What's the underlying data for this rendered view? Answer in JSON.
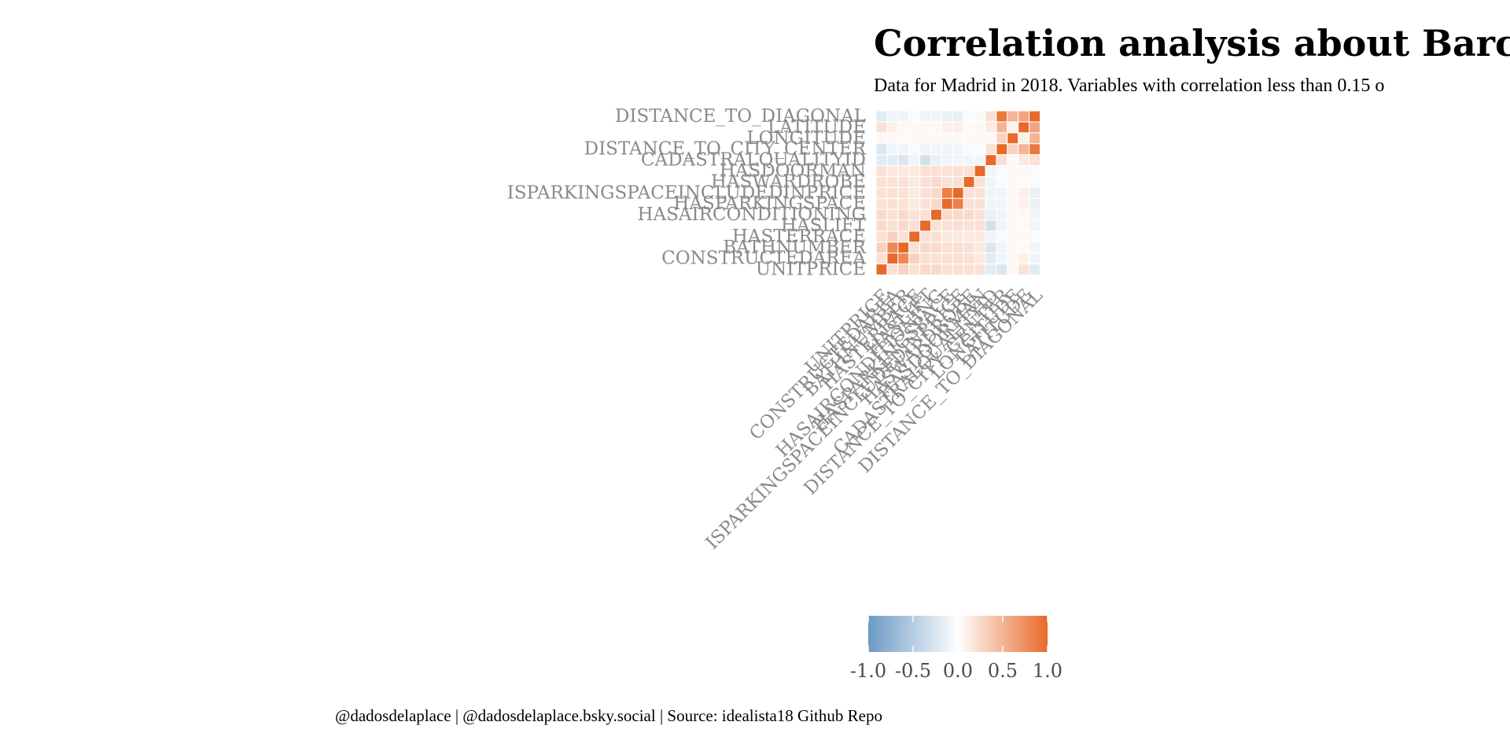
{
  "title": "Correlation analysis about Barce",
  "subtitle": "Data for Madrid in 2018. Variables with correlation less than 0.15 o",
  "caption": "@dadosdelaplace | @dadosdelaplace.bsky.social | Source: idealista18 Github Repo",
  "chart_data": {
    "type": "heatmap",
    "variables": [
      "UNITPRICE",
      "CONSTRUCTEDAREA",
      "BATHNUMBER",
      "HASTERRACE",
      "HASLIFT",
      "HASAIRCONDITIONING",
      "HASPARKINGSPACE",
      "ISPARKINGSPACEINCLUDEDINPRICE",
      "HASWARDROBE",
      "HASDOORMAN",
      "CADASTRALQUALITYID",
      "DISTANCE_TO_CITY_CENTER",
      "LONGITUDE",
      "LATITUDE",
      "DISTANCE_TO_DIAGONAL"
    ],
    "matrix": [
      [
        1.0,
        0.2,
        0.3,
        0.2,
        0.25,
        0.25,
        0.2,
        0.2,
        0.2,
        0.2,
        -0.2,
        -0.25,
        0.05,
        0.2,
        -0.2
      ],
      [
        0.2,
        1.0,
        0.8,
        0.3,
        0.2,
        0.2,
        0.2,
        0.2,
        0.2,
        0.15,
        -0.2,
        -0.1,
        0.05,
        0.1,
        -0.1
      ],
      [
        0.3,
        0.8,
        1.0,
        0.2,
        0.25,
        0.25,
        0.2,
        0.2,
        0.2,
        0.15,
        -0.25,
        -0.1,
        0.05,
        0.05,
        -0.1
      ],
      [
        0.2,
        0.3,
        0.2,
        1.0,
        0.2,
        0.2,
        0.15,
        0.15,
        0.15,
        0.15,
        -0.1,
        -0.05,
        0.05,
        0.05,
        -0.05
      ],
      [
        0.25,
        0.2,
        0.25,
        0.2,
        1.0,
        0.2,
        0.2,
        0.2,
        0.2,
        0.2,
        -0.3,
        -0.1,
        0.05,
        0.05,
        -0.1
      ],
      [
        0.25,
        0.2,
        0.25,
        0.2,
        0.2,
        1.0,
        0.25,
        0.25,
        0.25,
        0.2,
        -0.15,
        -0.1,
        0.05,
        0.05,
        -0.1
      ],
      [
        0.2,
        0.2,
        0.2,
        0.15,
        0.2,
        0.25,
        1.0,
        0.85,
        0.2,
        0.2,
        -0.1,
        -0.1,
        0.05,
        0.1,
        -0.15
      ],
      [
        0.2,
        0.2,
        0.2,
        0.15,
        0.2,
        0.25,
        0.85,
        1.0,
        0.2,
        0.2,
        -0.1,
        -0.1,
        0.05,
        0.1,
        -0.15
      ],
      [
        0.2,
        0.2,
        0.2,
        0.15,
        0.2,
        0.25,
        0.2,
        0.2,
        1.0,
        0.2,
        -0.1,
        -0.05,
        0.05,
        0.05,
        -0.05
      ],
      [
        0.2,
        0.15,
        0.15,
        0.15,
        0.2,
        0.2,
        0.2,
        0.2,
        0.2,
        1.0,
        -0.1,
        -0.05,
        0.05,
        0.05,
        -0.05
      ],
      [
        -0.2,
        -0.2,
        -0.25,
        -0.1,
        -0.3,
        -0.15,
        -0.1,
        -0.1,
        -0.1,
        -0.1,
        1.0,
        0.2,
        0.05,
        0.15,
        0.2
      ],
      [
        -0.25,
        -0.1,
        -0.1,
        -0.05,
        -0.1,
        -0.1,
        -0.1,
        -0.1,
        -0.05,
        -0.05,
        0.2,
        1.0,
        0.3,
        0.5,
        0.9
      ],
      [
        0.05,
        0.05,
        0.05,
        0.05,
        0.05,
        0.05,
        0.05,
        0.05,
        0.05,
        0.05,
        0.05,
        0.3,
        1.0,
        0.1,
        0.5
      ],
      [
        0.2,
        0.1,
        0.05,
        0.05,
        0.05,
        0.05,
        0.1,
        0.1,
        0.05,
        0.05,
        0.15,
        0.5,
        0.1,
        1.0,
        0.6
      ],
      [
        -0.2,
        -0.1,
        -0.1,
        -0.05,
        -0.1,
        -0.1,
        -0.15,
        -0.15,
        -0.05,
        -0.05,
        0.2,
        0.9,
        0.5,
        0.6,
        1.0
      ]
    ],
    "color_scale": {
      "min": -1.0,
      "max": 1.0,
      "low": "#6b9ac4",
      "mid": "#ffffff",
      "high": "#e8692a"
    },
    "legend": {
      "position": "bottom",
      "ticks": [
        -1.0,
        -0.5,
        0.0,
        0.5,
        1.0
      ],
      "tick_labels": [
        "-1.0",
        "-0.5",
        "0.0",
        "0.5",
        "1.0"
      ]
    }
  }
}
